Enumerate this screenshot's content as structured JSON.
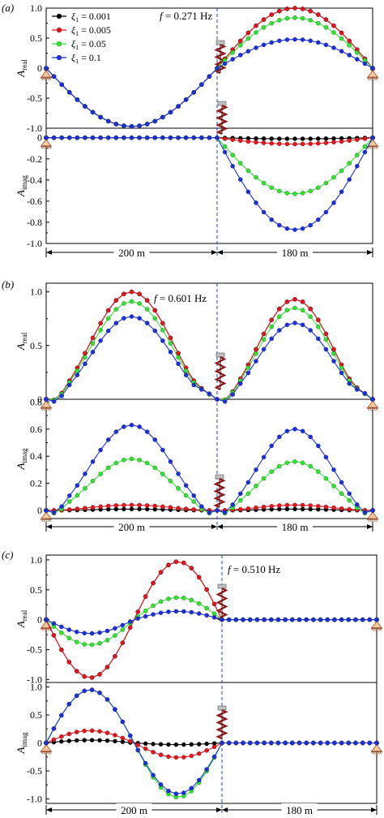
{
  "colors": {
    "black": "#000000",
    "red": "#e8141c",
    "green": "#2ee62e",
    "blue": "#1a2fe0",
    "axis": "#000000",
    "divider": "#2a3bd8",
    "damper": "#8b1a1a"
  },
  "chart_data": [
    {
      "panel": "(a)",
      "type": "line",
      "frequency": "f = 0.271 Hz",
      "span_labels": [
        "200 m",
        "180 m"
      ],
      "legend": [
        "ξ1 = 0.001",
        "ξ1 = 0.005",
        "ξ1 = 0.05",
        "ξ1 = 0.1"
      ],
      "real": {
        "ylabel": "Areal",
        "ylim": [
          -1.0,
          1.0
        ],
        "ticks": [
          "1.0",
          "0.5",
          "0",
          "-0.5",
          "-1.0"
        ],
        "series": [
          {
            "name": "ξ1 = 0.001",
            "span1_amp": -0.97,
            "span2_amp": 1.0
          },
          {
            "name": "ξ1 = 0.005",
            "span1_amp": -0.97,
            "span2_amp": 1.0
          },
          {
            "name": "ξ1 = 0.05",
            "span1_amp": -0.97,
            "span2_amp": 0.84
          },
          {
            "name": "ξ1 = 0.1",
            "span1_amp": -0.97,
            "span2_amp": 0.48
          }
        ]
      },
      "imag": {
        "ylabel": "Aimag",
        "ylim": [
          -1.0,
          0.0
        ],
        "ticks": [
          "0",
          "-0.2",
          "-0.4",
          "-0.6",
          "-0.8",
          "-1.0"
        ],
        "series": [
          {
            "name": "ξ1 = 0.001",
            "span1_amp": 0.0,
            "span2_amp": -0.01
          },
          {
            "name": "ξ1 = 0.005",
            "span1_amp": 0.0,
            "span2_amp": -0.06
          },
          {
            "name": "ξ1 = 0.05",
            "span1_amp": 0.0,
            "span2_amp": -0.53
          },
          {
            "name": "ξ1 = 0.1",
            "span1_amp": 0.0,
            "span2_amp": -0.87
          }
        ]
      }
    },
    {
      "panel": "(b)",
      "type": "line",
      "frequency": "f = 0.601 Hz",
      "span_labels": [
        "200 m",
        "180 m"
      ],
      "real": {
        "ylabel": "Areal",
        "ylim": [
          0.0,
          1.0
        ],
        "ticks": [
          "1.0",
          "0.5",
          "0"
        ],
        "series": [
          {
            "name": "ξ1 = 0.001",
            "span1_amp": 1.0,
            "span2_amp": 0.93
          },
          {
            "name": "ξ1 = 0.005",
            "span1_amp": 1.0,
            "span2_amp": 0.93
          },
          {
            "name": "ξ1 = 0.05",
            "span1_amp": 0.91,
            "span2_amp": 0.85
          },
          {
            "name": "ξ1 = 0.1",
            "span1_amp": 0.77,
            "span2_amp": 0.71
          }
        ]
      },
      "imag": {
        "ylabel": "Aimag",
        "ylim": [
          0.0,
          0.8
        ],
        "ticks": [
          "0.8",
          "0.6",
          "0.4",
          "0.2",
          "0"
        ],
        "series": [
          {
            "name": "ξ1 = 0.001",
            "span1_amp": 0.01,
            "span2_amp": 0.01
          },
          {
            "name": "ξ1 = 0.005",
            "span1_amp": 0.04,
            "span2_amp": 0.04
          },
          {
            "name": "ξ1 = 0.05",
            "span1_amp": 0.38,
            "span2_amp": 0.36
          },
          {
            "name": "ξ1 = 0.1",
            "span1_amp": 0.63,
            "span2_amp": 0.6
          }
        ]
      }
    },
    {
      "panel": "(c)",
      "type": "line",
      "frequency": "f = 0.510 Hz",
      "span_labels": [
        "200 m",
        "180 m"
      ],
      "real": {
        "ylabel": "Areal",
        "ylim": [
          -1.0,
          1.0
        ],
        "ticks": [
          "1.0",
          "0.5",
          "0",
          "-0.5",
          "-1.0"
        ],
        "series": [
          {
            "name": "ξ1 = 0.001",
            "trough": -0.97,
            "peak": 0.97
          },
          {
            "name": "ξ1 = 0.005",
            "trough": -0.97,
            "peak": 0.97
          },
          {
            "name": "ξ1 = 0.05",
            "trough": -0.42,
            "peak": 0.37
          },
          {
            "name": "ξ1 = 0.1",
            "trough": -0.23,
            "peak": 0.14
          }
        ]
      },
      "imag": {
        "ylabel": "Aimag",
        "ylim": [
          -1.0,
          1.0
        ],
        "ticks": [
          "1.0",
          "0.5",
          "0",
          "-0.5",
          "-1.0"
        ],
        "series": [
          {
            "name": "ξ1 = 0.001",
            "peak": 0.05,
            "trough": -0.03
          },
          {
            "name": "ξ1 = 0.005",
            "peak": 0.22,
            "trough": -0.26
          },
          {
            "name": "ξ1 = 0.05",
            "peak": 0.95,
            "trough": -0.97
          },
          {
            "name": "ξ1 = 0.1",
            "peak": 0.95,
            "trough": -0.91
          }
        ]
      }
    }
  ]
}
